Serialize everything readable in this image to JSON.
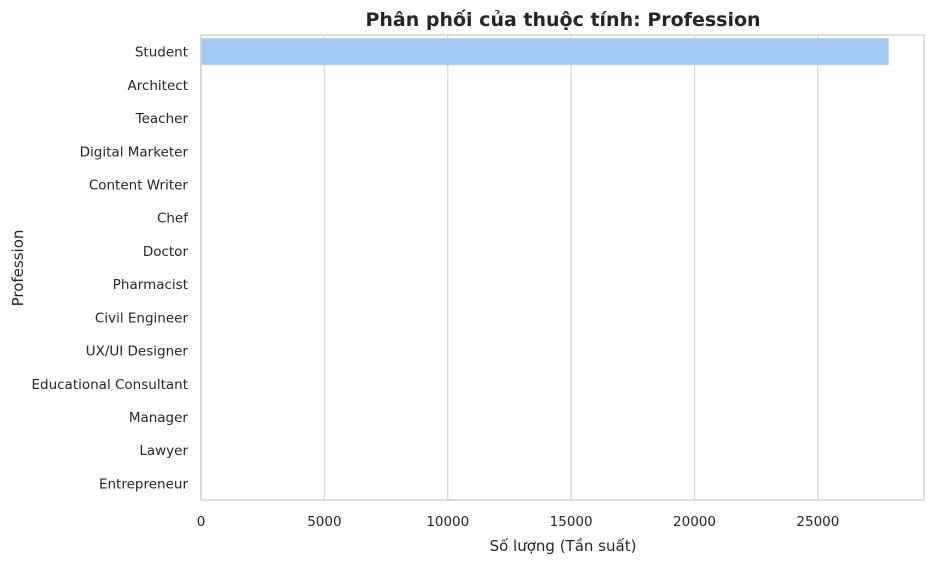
{
  "chart_data": {
    "type": "bar",
    "orientation": "horizontal",
    "title": "Phân phối của thuộc tính: Profession",
    "xlabel": "Số lượng (Tần suất)",
    "ylabel": "Profession",
    "categories": [
      "Student",
      "Architect",
      "Teacher",
      "Digital Marketer",
      "Content Writer",
      "Chef",
      "Doctor",
      "Pharmacist",
      "Civil Engineer",
      "UX/UI Designer",
      "Educational Consultant",
      "Manager",
      "Lawyer",
      "Entrepreneur"
    ],
    "values": [
      27870,
      8,
      6,
      3,
      2,
      2,
      2,
      2,
      1,
      1,
      1,
      1,
      1,
      1
    ],
    "xlim": [
      0,
      29300
    ],
    "xticks": [
      0,
      5000,
      10000,
      15000,
      20000,
      25000
    ],
    "grid": "vertical",
    "bar_color": "#a1c9f4"
  }
}
